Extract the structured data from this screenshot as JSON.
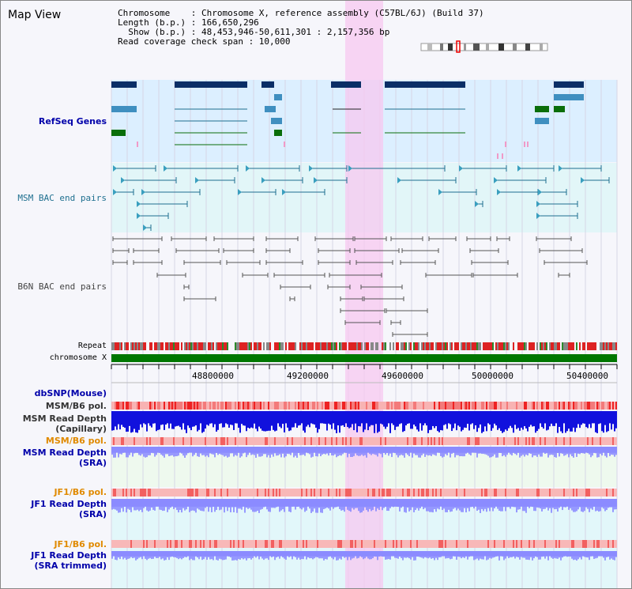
{
  "title": "Map View",
  "header": {
    "chromosome": "Chromosome    : Chromosome X, reference assembly (C57BL/6J) (Build 37)",
    "length": "Length (b.p.) : 166,650,296",
    "show": "  Show (b.p.) : 48,453,946-50,611,301 : 2,157,356 bp",
    "coverage": "Read coverage check span : 10,000"
  },
  "tracks": {
    "refseq": "RefSeq Genes",
    "msm_bac": "MSM BAC end pairs",
    "b6n_bac": "B6N BAC end pairs",
    "repeat": "Repeat",
    "chromosome": "chromosome X",
    "dbsnp": "dbSNP(Mouse)",
    "msm_b6_pol_1": "MSM/B6 pol.",
    "msm_read_depth_cap_1": "MSM Read Depth",
    "msm_read_depth_cap_2": "(Capillary)",
    "msm_b6_pol_2": "MSM/B6 pol.",
    "msm_read_depth_sra_1": "MSM Read Depth",
    "msm_read_depth_sra_2": "(SRA)",
    "jf1_b6_pol_1": "JF1/B6 pol.",
    "jf1_read_depth_sra_1": "JF1 Read Depth",
    "jf1_read_depth_sra_2": "(SRA)",
    "jf1_b6_pol_2": "JF1/B6 pol.",
    "jf1_read_depth_trim_1": "JF1 Read Depth",
    "jf1_read_depth_trim_2": "(SRA trimmed)"
  },
  "axis": {
    "ticks": [
      "48800000",
      "49200000",
      "49600000",
      "50000000",
      "50400000"
    ]
  },
  "colors": {
    "refseq_bg": "#dcefff",
    "msm_bg": "#e2f6f8",
    "highlight": "#f7c8f0",
    "chromosome_bar": "#007700",
    "depth_dark": "#1111dd",
    "depth_light": "#8888ff"
  }
}
